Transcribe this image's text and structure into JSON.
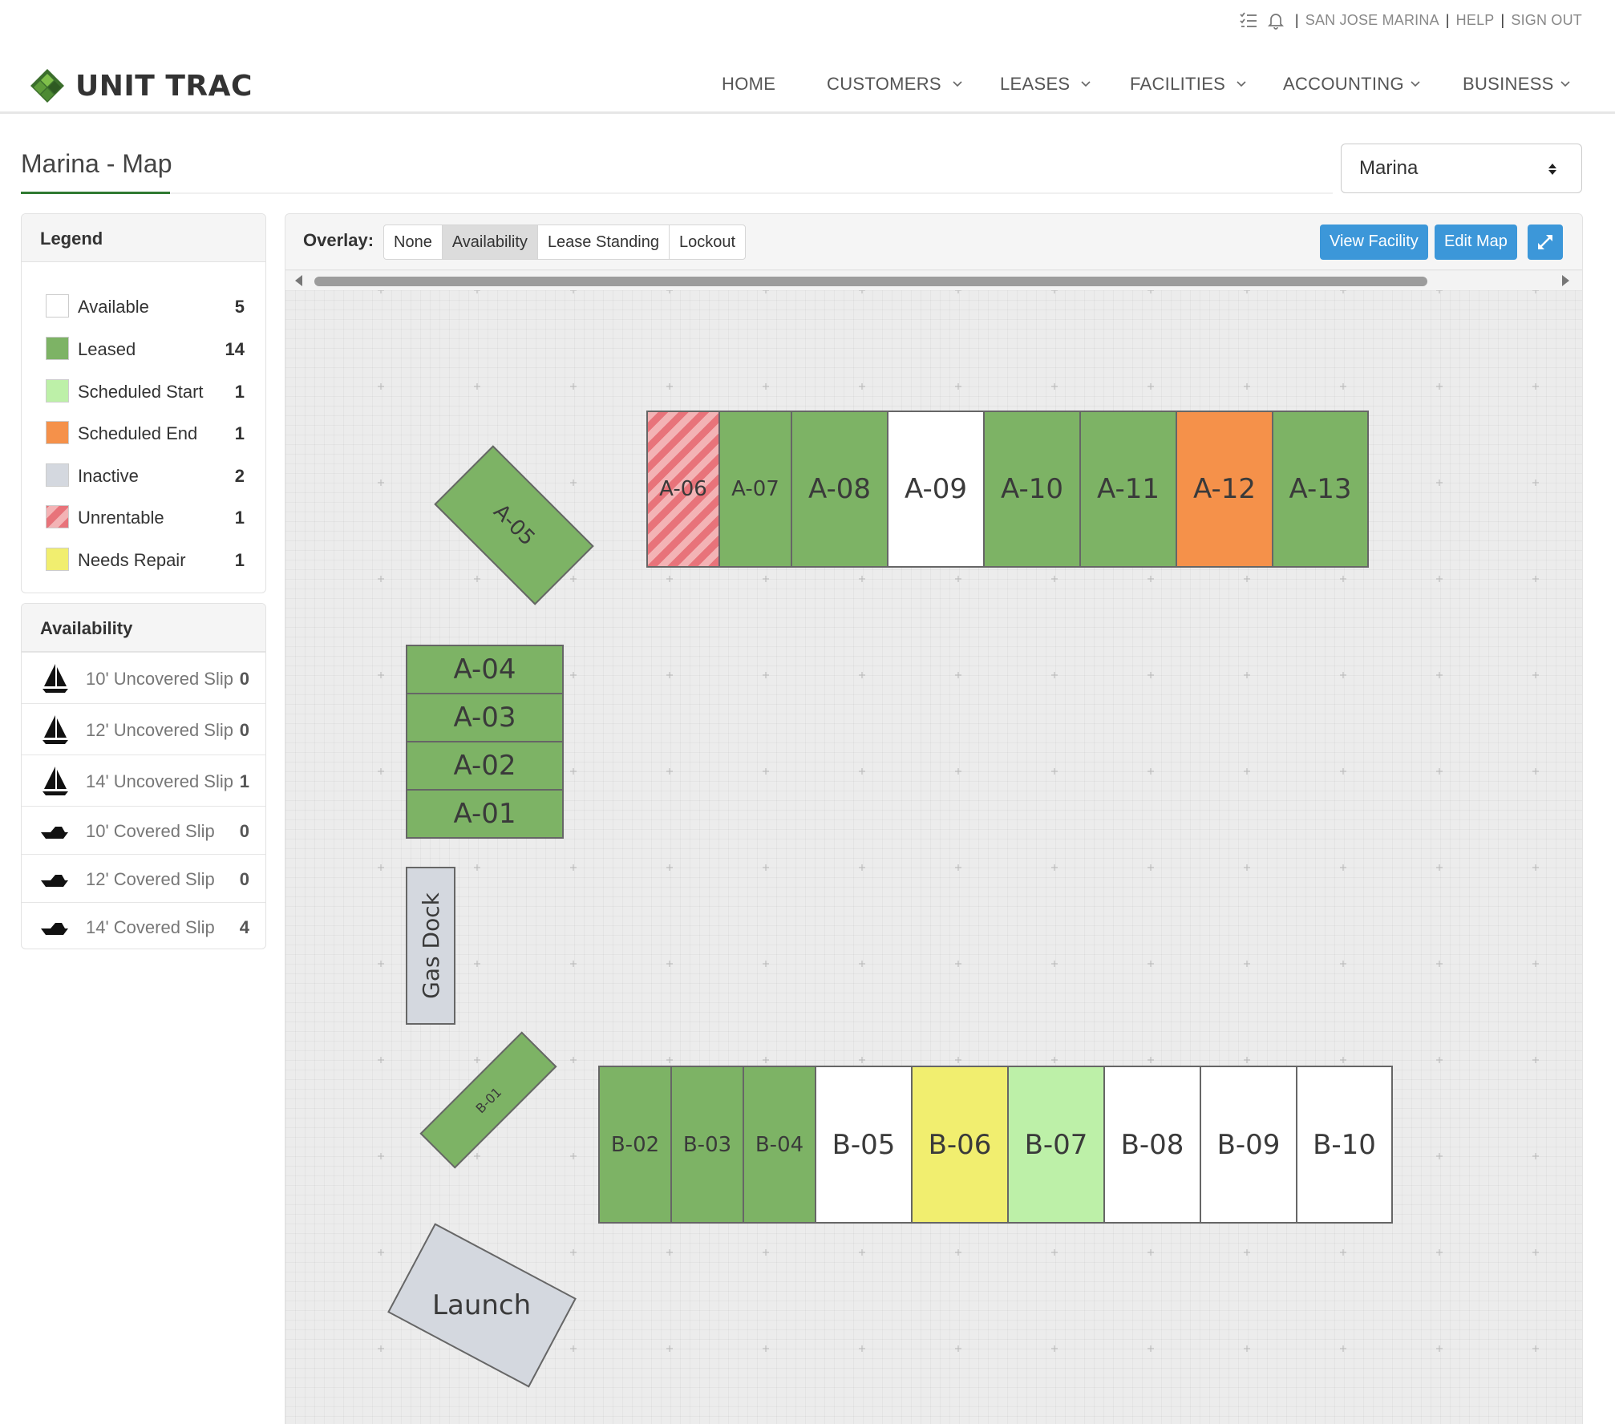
{
  "topbar": {
    "company": "SAN JOSE MARINA",
    "help": "HELP",
    "sign_out": "SIGN OUT",
    "separator": "|"
  },
  "header": {
    "logo_text": "UNIT TRAC",
    "nav": {
      "home": "HOME",
      "customers": "CUSTOMERS",
      "leases": "LEASES",
      "facilities": "FACILITIES",
      "accounting": "ACCOUNTING",
      "business": "BUSINESS"
    }
  },
  "page": {
    "title": "Marina - Map",
    "facility_select": "Marina"
  },
  "legend": {
    "title": "Legend",
    "items": [
      {
        "label": "Available",
        "count": "5",
        "color": "#ffffff"
      },
      {
        "label": "Leased",
        "count": "14",
        "color": "#7db365"
      },
      {
        "label": "Scheduled Start",
        "count": "1",
        "color": "#bdf0a8"
      },
      {
        "label": "Scheduled End",
        "count": "1",
        "color": "#f5914a"
      },
      {
        "label": "Inactive",
        "count": "2",
        "color": "#d4d8df"
      },
      {
        "label": "Unrentable",
        "count": "1",
        "color": "striped-red"
      },
      {
        "label": "Needs Repair",
        "count": "1",
        "color": "#f1ee6f"
      }
    ]
  },
  "availability": {
    "title": "Availability",
    "items": [
      {
        "label": "10' Uncovered Slip",
        "count": "0",
        "icon": "sailboat-icon"
      },
      {
        "label": "12' Uncovered Slip",
        "count": "0",
        "icon": "sailboat-icon"
      },
      {
        "label": "14' Uncovered Slip",
        "count": "1",
        "icon": "sailboat-icon"
      },
      {
        "label": "10' Covered Slip",
        "count": "0",
        "icon": "motorboat-icon"
      },
      {
        "label": "12' Covered Slip",
        "count": "0",
        "icon": "motorboat-icon"
      },
      {
        "label": "14' Covered Slip",
        "count": "4",
        "icon": "motorboat-icon"
      }
    ]
  },
  "map": {
    "overlay_label": "Overlay:",
    "overlay_options": [
      "None",
      "Availability",
      "Lease Standing",
      "Lockout"
    ],
    "overlay_selected": "Availability",
    "view_facility": "View Facility",
    "edit_map": "Edit Map",
    "units": {
      "a06": "A-06",
      "a07": "A-07",
      "a08": "A-08",
      "a09": "A-09",
      "a10": "A-10",
      "a11": "A-11",
      "a12": "A-12",
      "a13": "A-13",
      "a05": "A-05",
      "a04": "A-04",
      "a03": "A-03",
      "a02": "A-02",
      "a01": "A-01",
      "gas_dock": "Gas Dock",
      "b01": "B-01",
      "b02": "B-02",
      "b03": "B-03",
      "b04": "B-04",
      "b05": "B-05",
      "b06": "B-06",
      "b07": "B-07",
      "b08": "B-08",
      "b09": "B-09",
      "b10": "B-10",
      "launch": "Launch"
    }
  }
}
